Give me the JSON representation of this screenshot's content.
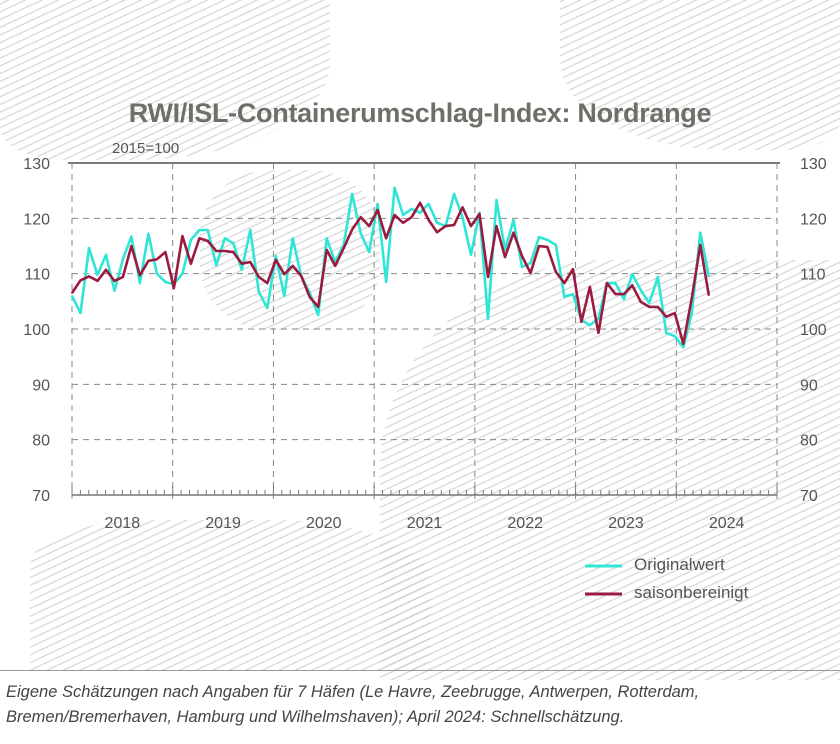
{
  "chart_data": {
    "type": "line",
    "title": "RWI/ISL-Containerumschlag-Index: Nordrange",
    "subtitle": "2015=100",
    "x_start": "2018-01",
    "x_end": "2024-04",
    "frequency": "monthly",
    "ylim": [
      70,
      130
    ],
    "yticks": [
      "130",
      "120",
      "110",
      "100",
      "90",
      "80",
      "70"
    ],
    "year_labels": [
      "2018",
      "2019",
      "2020",
      "2021",
      "2022",
      "2023",
      "2024"
    ],
    "grid": true,
    "legend_position": "bottom-right",
    "series": [
      {
        "name": "Originalwert",
        "color": "#2fe6d6",
        "values": [
          106.0,
          102.9,
          114.6,
          109.8,
          113.4,
          106.9,
          112.6,
          116.7,
          108.3,
          117.2,
          110.0,
          108.5,
          108.1,
          110.0,
          116.1,
          117.9,
          117.9,
          111.5,
          116.4,
          115.5,
          110.7,
          117.9,
          106.7,
          103.8,
          113.2,
          106.0,
          116.4,
          109.6,
          106.5,
          102.5,
          116.4,
          112.1,
          115.2,
          124.4,
          117.3,
          113.9,
          122.6,
          108.5,
          125.5,
          120.6,
          121.7,
          121.0,
          122.6,
          119.2,
          118.6,
          124.4,
          120.2,
          113.4,
          121.0,
          101.8,
          123.3,
          114.3,
          119.7,
          111.2,
          111.9,
          116.6,
          116.1,
          115.2,
          105.8,
          106.3,
          101.6,
          100.7,
          101.9,
          108.3,
          108.3,
          105.4,
          109.9,
          107.0,
          104.7,
          109.4,
          99.3,
          98.7,
          96.7,
          102.9,
          117.4,
          109.5
        ]
      },
      {
        "name": "saisonbereinigt",
        "color": "#9b1b40",
        "values": [
          106.5,
          108.8,
          109.5,
          108.7,
          110.7,
          108.7,
          109.4,
          115.0,
          109.7,
          112.3,
          112.6,
          113.9,
          107.4,
          116.8,
          111.8,
          116.4,
          115.9,
          114.1,
          114.1,
          113.9,
          111.8,
          112.1,
          109.4,
          108.3,
          112.5,
          109.9,
          111.4,
          109.6,
          105.8,
          104.0,
          114.3,
          111.4,
          114.6,
          118.0,
          120.2,
          118.6,
          121.5,
          116.4,
          120.6,
          119.2,
          120.2,
          122.8,
          119.7,
          117.5,
          118.6,
          118.8,
          122.0,
          118.6,
          120.8,
          109.4,
          118.6,
          113.0,
          117.4,
          113.2,
          110.1,
          115.0,
          114.8,
          110.3,
          108.3,
          110.8,
          101.3,
          107.6,
          99.3,
          108.3,
          106.3,
          106.3,
          107.9,
          104.9,
          104.0,
          104.0,
          102.2,
          102.9,
          97.3,
          105.6,
          115.2,
          106.1
        ]
      }
    ]
  },
  "legend": {
    "original": "Originalwert",
    "adjusted": "saisonbereinigt"
  },
  "footnote": {
    "line1": "Eigene Schätzungen nach Angaben für 7 Häfen (Le Havre, Zeebrugge, Antwerpen, Rotterdam,",
    "line2": "Bremen/Bremerhaven, Hamburg und Wilhelmshaven); April 2024: Schnellschätzung."
  }
}
